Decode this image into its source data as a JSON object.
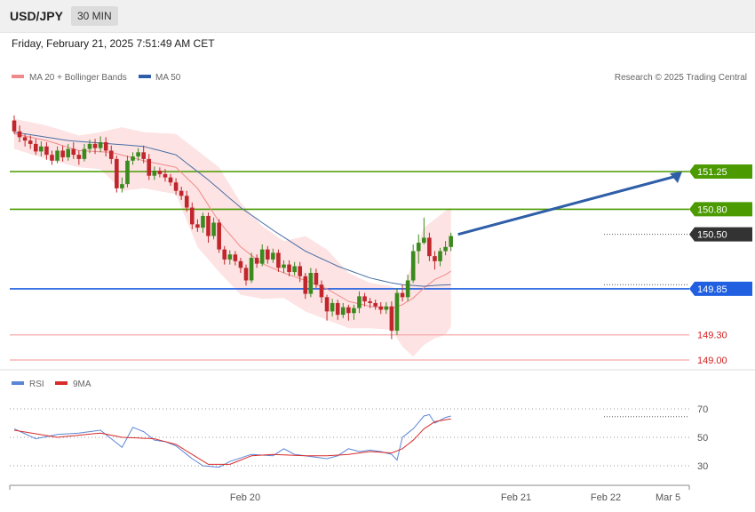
{
  "header": {
    "symbol": "USD/JPY",
    "interval": "30 MIN",
    "timestamp": "Friday, February 21, 2025 7:51:49 AM CET"
  },
  "legend": {
    "ma20": "MA 20 + Bollinger Bands",
    "ma50": "MA 50",
    "credit": "Research © 2025 Trading Central",
    "rsi": "RSI",
    "rsi_ma": "9MA"
  },
  "colors": {
    "support_red": "#f4a9a9",
    "level_green": "#4a9a00",
    "pivot_blue": "#1f5fe0",
    "last_price": "#333333",
    "candle_up": "#3a8a1e",
    "candle_down": "#c0262c",
    "bollinger": "#fde3e3",
    "ma20": "#f08a8a",
    "ma50": "#4a6fa5",
    "rsi_line": "#5a86d6",
    "rsi_ma_line": "#d92b2b",
    "arrow": "#2f5ea8"
  },
  "chart_data": {
    "type": "candlestick",
    "price_axis": {
      "levels": [
        {
          "label": "151.25",
          "value": 151.25,
          "kind": "resistance"
        },
        {
          "label": "150.80",
          "value": 150.8,
          "kind": "resistance"
        },
        {
          "label": "150.50",
          "value": 150.5,
          "kind": "last_price"
        },
        {
          "label": "149.85",
          "value": 149.85,
          "kind": "pivot"
        },
        {
          "label": "149.30",
          "value": 149.3,
          "kind": "support"
        },
        {
          "label": "149.00",
          "value": 149.0,
          "kind": "support"
        }
      ]
    },
    "time_axis": {
      "labels": [
        "Feb 20",
        "Feb 21",
        "Feb 22",
        "Mar 5"
      ]
    },
    "rsi_axis": {
      "labels": [
        "70",
        "50",
        "30"
      ]
    },
    "candles": [
      [
        151.86,
        151.73,
        151.92,
        151.7
      ],
      [
        151.73,
        151.66,
        151.8,
        151.6
      ],
      [
        151.66,
        151.62,
        151.7,
        151.55
      ],
      [
        151.62,
        151.58,
        151.68,
        151.52
      ],
      [
        151.58,
        151.49,
        151.64,
        151.45
      ],
      [
        151.49,
        151.55,
        151.61,
        151.43
      ],
      [
        151.55,
        151.45,
        151.6,
        151.39
      ],
      [
        151.45,
        151.38,
        151.5,
        151.33
      ],
      [
        151.38,
        151.5,
        151.55,
        151.35
      ],
      [
        151.5,
        151.42,
        151.56,
        151.37
      ],
      [
        151.42,
        151.52,
        151.58,
        151.38
      ],
      [
        151.52,
        151.45,
        151.6,
        151.4
      ],
      [
        151.45,
        151.4,
        151.5,
        151.33
      ],
      [
        151.4,
        151.52,
        151.58,
        151.37
      ],
      [
        151.52,
        151.58,
        151.63,
        151.47
      ],
      [
        151.58,
        151.53,
        151.64,
        151.46
      ],
      [
        151.53,
        151.6,
        151.67,
        151.48
      ],
      [
        151.6,
        151.5,
        151.66,
        151.43
      ],
      [
        151.5,
        151.4,
        151.56,
        151.34
      ],
      [
        151.4,
        151.05,
        151.44,
        151.0
      ],
      [
        151.05,
        151.1,
        151.18,
        151.0
      ],
      [
        151.1,
        151.38,
        151.44,
        151.06
      ],
      [
        151.38,
        151.43,
        151.48,
        151.33
      ],
      [
        151.43,
        151.48,
        151.53,
        151.38
      ],
      [
        151.48,
        151.4,
        151.56,
        151.35
      ],
      [
        151.4,
        151.2,
        151.46,
        151.15
      ],
      [
        151.2,
        151.26,
        151.31,
        151.15
      ],
      [
        151.26,
        151.22,
        151.3,
        151.18
      ],
      [
        151.22,
        151.18,
        151.28,
        151.13
      ],
      [
        151.18,
        151.12,
        151.22,
        151.08
      ],
      [
        151.12,
        151.02,
        151.17,
        150.97
      ],
      [
        151.02,
        150.96,
        151.07,
        150.91
      ],
      [
        150.96,
        150.82,
        151.02,
        150.77
      ],
      [
        150.82,
        150.62,
        150.88,
        150.56
      ],
      [
        150.62,
        150.58,
        150.68,
        150.53
      ],
      [
        150.58,
        150.72,
        150.76,
        150.52
      ],
      [
        150.72,
        150.48,
        150.76,
        150.4
      ],
      [
        150.48,
        150.64,
        150.7,
        150.44
      ],
      [
        150.64,
        150.32,
        150.68,
        150.28
      ],
      [
        150.32,
        150.2,
        150.36,
        150.14
      ],
      [
        150.2,
        150.26,
        150.31,
        150.14
      ],
      [
        150.26,
        150.18,
        150.3,
        150.13
      ],
      [
        150.18,
        150.1,
        150.22,
        150.04
      ],
      [
        150.1,
        149.95,
        150.14,
        149.89
      ],
      [
        149.95,
        150.22,
        150.28,
        149.92
      ],
      [
        150.22,
        150.15,
        150.26,
        150.1
      ],
      [
        150.15,
        150.32,
        150.38,
        150.12
      ],
      [
        150.32,
        150.2,
        150.36,
        150.15
      ],
      [
        150.2,
        150.28,
        150.33,
        150.16
      ],
      [
        150.28,
        150.1,
        150.32,
        150.05
      ],
      [
        150.1,
        150.14,
        150.19,
        150.04
      ],
      [
        150.14,
        150.05,
        150.19,
        150.0
      ],
      [
        150.05,
        150.12,
        150.17,
        150.01
      ],
      [
        150.12,
        150.0,
        150.17,
        149.93
      ],
      [
        150.0,
        149.79,
        150.04,
        149.73
      ],
      [
        149.79,
        150.04,
        150.1,
        149.75
      ],
      [
        150.04,
        149.9,
        150.09,
        149.86
      ],
      [
        149.9,
        149.75,
        149.95,
        149.68
      ],
      [
        149.75,
        149.58,
        149.78,
        149.47
      ],
      [
        149.58,
        149.68,
        149.73,
        149.52
      ],
      [
        149.68,
        149.54,
        149.72,
        149.48
      ],
      [
        149.54,
        149.63,
        149.68,
        149.5
      ],
      [
        149.63,
        149.56,
        149.66,
        149.47
      ],
      [
        149.56,
        149.62,
        149.66,
        149.48
      ],
      [
        149.62,
        149.76,
        149.82,
        149.56
      ],
      [
        149.76,
        149.7,
        149.8,
        149.64
      ],
      [
        149.7,
        149.68,
        149.74,
        149.62
      ],
      [
        149.68,
        149.64,
        149.72,
        149.6
      ],
      [
        149.64,
        149.6,
        149.69,
        149.55
      ],
      [
        149.6,
        149.64,
        149.69,
        149.55
      ],
      [
        149.64,
        149.35,
        149.7,
        149.25
      ],
      [
        149.35,
        149.8,
        149.86,
        149.3
      ],
      [
        149.8,
        149.75,
        149.9,
        149.7
      ],
      [
        149.75,
        149.95,
        150.02,
        149.7
      ],
      [
        149.95,
        150.3,
        150.38,
        149.92
      ],
      [
        150.3,
        150.4,
        150.5,
        150.15
      ],
      [
        150.4,
        150.46,
        150.7,
        150.38
      ],
      [
        150.46,
        150.24,
        150.52,
        150.18
      ],
      [
        150.24,
        150.18,
        150.3,
        150.08
      ],
      [
        150.18,
        150.3,
        150.34,
        150.12
      ],
      [
        150.3,
        150.35,
        150.42,
        150.25
      ],
      [
        150.35,
        150.48,
        150.52,
        150.3
      ]
    ],
    "bollinger": {
      "anchors": [
        [
          0,
          151.88,
          151.52
        ],
        [
          6,
          151.8,
          151.4
        ],
        [
          12,
          151.68,
          151.3
        ],
        [
          16,
          151.72,
          151.28
        ],
        [
          20,
          151.78,
          151.02
        ],
        [
          24,
          151.72,
          151.05
        ],
        [
          30,
          151.7,
          150.98
        ],
        [
          34,
          151.5,
          150.35
        ],
        [
          38,
          151.3,
          150.05
        ],
        [
          42,
          150.88,
          149.78
        ],
        [
          46,
          150.6,
          149.73
        ],
        [
          50,
          150.42,
          149.74
        ],
        [
          54,
          150.48,
          149.58
        ],
        [
          58,
          150.32,
          149.48
        ],
        [
          62,
          150.04,
          149.38
        ],
        [
          66,
          149.92,
          149.38
        ],
        [
          70,
          149.88,
          149.36
        ],
        [
          72,
          149.8,
          149.16
        ],
        [
          74,
          150.2,
          149.04
        ],
        [
          76,
          150.58,
          149.18
        ],
        [
          78,
          150.68,
          149.26
        ],
        [
          80,
          150.78,
          149.3
        ],
        [
          81,
          150.82,
          149.4
        ]
      ]
    },
    "ma20": {
      "anchors": [
        [
          0,
          151.7
        ],
        [
          6,
          151.62
        ],
        [
          12,
          151.5
        ],
        [
          18,
          151.48
        ],
        [
          24,
          151.38
        ],
        [
          30,
          151.3
        ],
        [
          34,
          151.05
        ],
        [
          38,
          150.65
        ],
        [
          42,
          150.35
        ],
        [
          46,
          150.15
        ],
        [
          50,
          150.04
        ],
        [
          54,
          149.95
        ],
        [
          58,
          149.85
        ],
        [
          62,
          149.7
        ],
        [
          66,
          149.64
        ],
        [
          70,
          149.62
        ],
        [
          72,
          149.66
        ],
        [
          74,
          149.74
        ],
        [
          76,
          149.86
        ],
        [
          78,
          149.96
        ],
        [
          80,
          150.02
        ],
        [
          81,
          150.06
        ]
      ]
    },
    "ma50": {
      "anchors": [
        [
          0,
          151.72
        ],
        [
          10,
          151.62
        ],
        [
          18,
          151.58
        ],
        [
          24,
          151.55
        ],
        [
          30,
          151.45
        ],
        [
          36,
          151.15
        ],
        [
          42,
          150.82
        ],
        [
          48,
          150.55
        ],
        [
          54,
          150.3
        ],
        [
          60,
          150.12
        ],
        [
          66,
          149.98
        ],
        [
          70,
          149.92
        ],
        [
          72,
          149.9
        ],
        [
          74,
          149.89
        ],
        [
          76,
          149.88
        ],
        [
          78,
          149.89
        ],
        [
          81,
          149.9
        ]
      ]
    },
    "rsi": {
      "anchors": [
        [
          0,
          56
        ],
        [
          4,
          49
        ],
        [
          8,
          52
        ],
        [
          12,
          53
        ],
        [
          16,
          55
        ],
        [
          20,
          43
        ],
        [
          22,
          57
        ],
        [
          24,
          54
        ],
        [
          26,
          48
        ],
        [
          28,
          47
        ],
        [
          30,
          44
        ],
        [
          33,
          35
        ],
        [
          35,
          30
        ],
        [
          38,
          29
        ],
        [
          40,
          33
        ],
        [
          44,
          38
        ],
        [
          48,
          37
        ],
        [
          50,
          42
        ],
        [
          52,
          38
        ],
        [
          54,
          37
        ],
        [
          56,
          36
        ],
        [
          58,
          35
        ],
        [
          60,
          37
        ],
        [
          62,
          42
        ],
        [
          64,
          40
        ],
        [
          66,
          41
        ],
        [
          68,
          40
        ],
        [
          70,
          38
        ],
        [
          71,
          34
        ],
        [
          72,
          50
        ],
        [
          74,
          56
        ],
        [
          76,
          65
        ],
        [
          77,
          66
        ],
        [
          78,
          60
        ],
        [
          80,
          64
        ],
        [
          81,
          65
        ]
      ]
    },
    "rsi_ma": {
      "anchors": [
        [
          0,
          55
        ],
        [
          8,
          50
        ],
        [
          16,
          53
        ],
        [
          20,
          50
        ],
        [
          26,
          49
        ],
        [
          30,
          45
        ],
        [
          33,
          38
        ],
        [
          36,
          31
        ],
        [
          40,
          31
        ],
        [
          44,
          37
        ],
        [
          48,
          38
        ],
        [
          54,
          37
        ],
        [
          58,
          37
        ],
        [
          62,
          38
        ],
        [
          66,
          40
        ],
        [
          70,
          39
        ],
        [
          72,
          42
        ],
        [
          74,
          48
        ],
        [
          76,
          56
        ],
        [
          78,
          61
        ],
        [
          81,
          63
        ]
      ]
    }
  }
}
